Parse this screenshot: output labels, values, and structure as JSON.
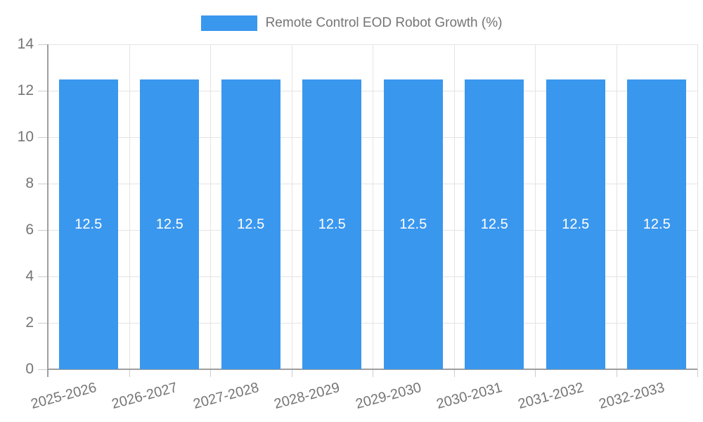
{
  "chart_data": {
    "type": "bar",
    "title": "Remote Control EOD Robot Growth (%)",
    "legend_position": "top-center",
    "categories": [
      "2025-2026",
      "2026-2027",
      "2027-2028",
      "2028-2029",
      "2029-2030",
      "2030-2031",
      "2031-2032",
      "2032-2033"
    ],
    "series": [
      {
        "name": "Remote Control EOD Robot Growth (%)",
        "values": [
          12.5,
          12.5,
          12.5,
          12.5,
          12.5,
          12.5,
          12.5,
          12.5
        ],
        "value_labels": [
          "12.5",
          "12.5",
          "12.5",
          "12.5",
          "12.5",
          "12.5",
          "12.5",
          "12.5"
        ]
      }
    ],
    "xlabel": "",
    "ylabel": "",
    "ylim": [
      0,
      14
    ],
    "yticks": [
      0,
      2,
      4,
      6,
      8,
      10,
      12,
      14
    ],
    "grid": true,
    "colors": {
      "bar": "#3a97ee",
      "axis": "#9e9e9e",
      "gridline": "#e4e4e4",
      "tick": "#cccccc",
      "label_text": "#757575",
      "value_label_text": "#ffffff",
      "background": "#ffffff"
    }
  }
}
